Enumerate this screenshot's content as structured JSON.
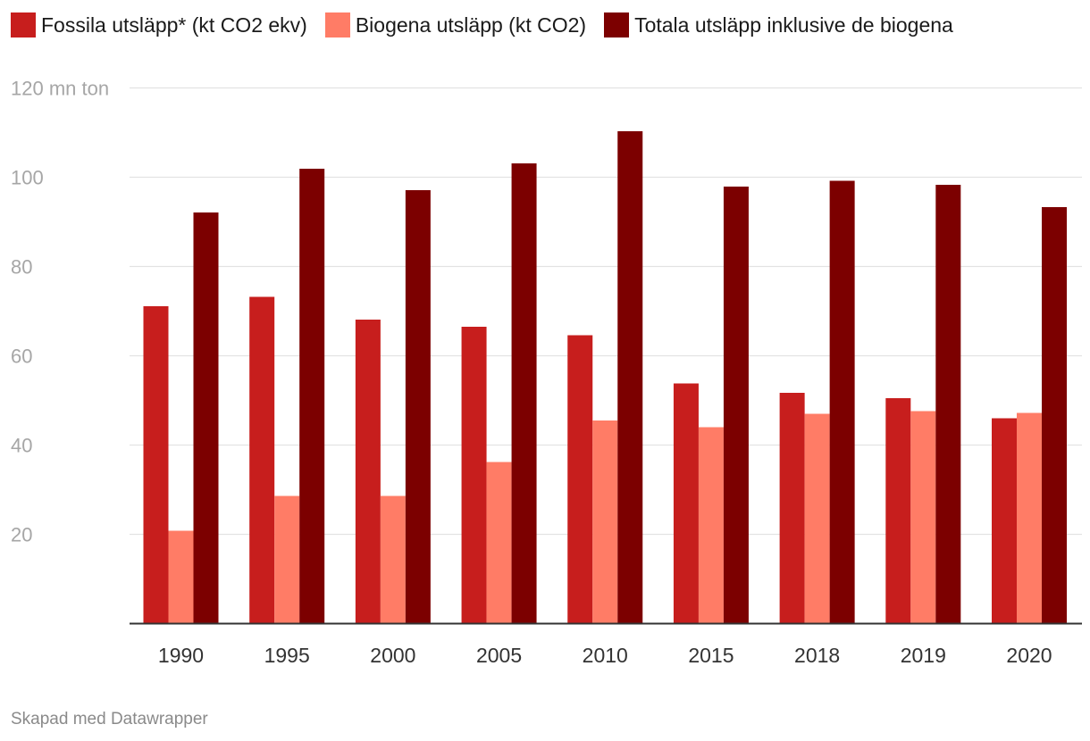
{
  "chart_data": {
    "type": "bar",
    "categories": [
      "1990",
      "1995",
      "2000",
      "2005",
      "2010",
      "2015",
      "2018",
      "2019",
      "2020"
    ],
    "series": [
      {
        "name": "Fossila utsläpp* (kt CO2 ekv)",
        "color": "#c71e1d",
        "values": [
          71.1,
          73.2,
          68.1,
          66.5,
          64.6,
          53.8,
          51.7,
          50.5,
          46.0
        ]
      },
      {
        "name": "Biogena utsläpp (kt CO2)",
        "color": "#ff7c66",
        "values": [
          20.8,
          28.6,
          28.6,
          36.2,
          45.5,
          44.0,
          47.0,
          47.6,
          47.2
        ]
      },
      {
        "name": "Totala utsläpp inklusive de biogena",
        "color": "#7c0000",
        "values": [
          92.1,
          101.9,
          97.1,
          103.1,
          110.3,
          97.9,
          99.2,
          98.3,
          93.3
        ]
      }
    ],
    "y_ticks": [
      {
        "value": 20,
        "label": "20"
      },
      {
        "value": 40,
        "label": "40"
      },
      {
        "value": 60,
        "label": "60"
      },
      {
        "value": 80,
        "label": "80"
      },
      {
        "value": 100,
        "label": "100"
      },
      {
        "value": 120,
        "label": "120 mn ton"
      }
    ],
    "ylim": [
      0,
      120
    ],
    "grid": true,
    "legend_position": "top-left",
    "colors": {
      "grid": "#e3e3e3",
      "axis": "#333333",
      "tick_label": "#a6a6a6",
      "category_label": "#333333"
    }
  },
  "footer": {
    "credit": "Skapad med Datawrapper"
  }
}
